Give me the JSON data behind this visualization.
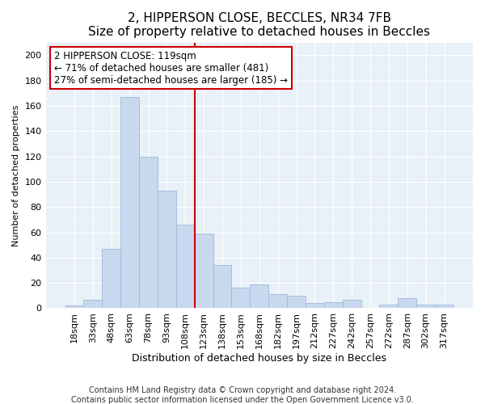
{
  "title1": "2, HIPPERSON CLOSE, BECCLES, NR34 7FB",
  "title2": "Size of property relative to detached houses in Beccles",
  "xlabel": "Distribution of detached houses by size in Beccles",
  "ylabel": "Number of detached properties",
  "categories": [
    "18sqm",
    "33sqm",
    "48sqm",
    "63sqm",
    "78sqm",
    "93sqm",
    "108sqm",
    "123sqm",
    "138sqm",
    "153sqm",
    "168sqm",
    "182sqm",
    "197sqm",
    "212sqm",
    "227sqm",
    "242sqm",
    "257sqm",
    "272sqm",
    "287sqm",
    "302sqm",
    "317sqm"
  ],
  "values": [
    2,
    7,
    47,
    167,
    120,
    93,
    66,
    59,
    34,
    16,
    19,
    11,
    10,
    4,
    5,
    7,
    0,
    3,
    8,
    3,
    3
  ],
  "bar_color": "#c8d8ef",
  "bar_edge_color": "#a0b8d8",
  "vline_color": "#cc0000",
  "vline_x_index": 7,
  "annotation_line1": "2 HIPPERSON CLOSE: 119sqm",
  "annotation_line2": "← 71% of detached houses are smaller (481)",
  "annotation_line3": "27% of semi-detached houses are larger (185) →",
  "annotation_box_facecolor": "#ffffff",
  "annotation_box_edgecolor": "#cc0000",
  "footer1": "Contains HM Land Registry data © Crown copyright and database right 2024.",
  "footer2": "Contains public sector information licensed under the Open Government Licence v3.0.",
  "fig_facecolor": "#ffffff",
  "plot_facecolor": "#e8f0f8",
  "ylim": [
    0,
    210
  ],
  "yticks": [
    0,
    20,
    40,
    60,
    80,
    100,
    120,
    140,
    160,
    180,
    200
  ],
  "title1_fontsize": 11,
  "title2_fontsize": 10,
  "xlabel_fontsize": 9,
  "ylabel_fontsize": 8,
  "tick_fontsize": 8,
  "footer_fontsize": 7,
  "annot_fontsize": 8.5
}
